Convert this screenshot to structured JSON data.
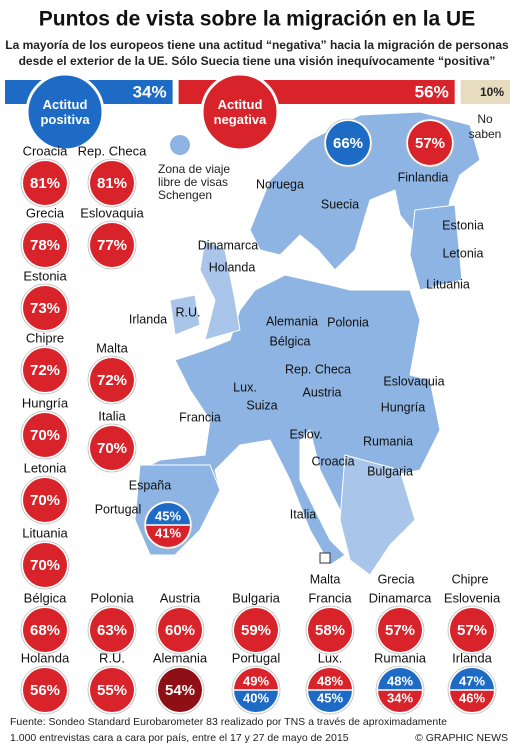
{
  "header": {
    "title": "Puntos de vista sobre la migración en la UE",
    "subtitle": [
      "La mayoría de los europeos tiene una actitud “negativa” hacia la migración de personas",
      "desde el exterior de la UE. Sólo Suecia tiene una visión inequívocamente “positiva”"
    ]
  },
  "summary": {
    "segments": [
      {
        "name": "Actitud positiva",
        "value": 34,
        "value_label": "34%",
        "color": "#1d6bc4"
      },
      {
        "name": "Actitud negativa",
        "value": 56,
        "value_label": "56%",
        "color": "#d8232a"
      },
      {
        "name": "No saben",
        "value": 10,
        "value_label": "10%",
        "color": "#e8dcc0"
      }
    ]
  },
  "palette": {
    "positive": "#1d6bc4",
    "negative": "#d8232a",
    "negative_dark": "#8e1014"
  },
  "schengen_legend": [
    "Zona de viaje",
    "libre de visas",
    "Schengen"
  ],
  "countries": [
    {
      "name": "Croacia",
      "values": [
        "81%"
      ],
      "tones": [
        "negative"
      ]
    },
    {
      "name": "Rep. Checa",
      "values": [
        "81%"
      ],
      "tones": [
        "negative"
      ]
    },
    {
      "name": "Grecia",
      "values": [
        "78%"
      ],
      "tones": [
        "negative"
      ]
    },
    {
      "name": "Eslovaquia",
      "values": [
        "77%"
      ],
      "tones": [
        "negative"
      ]
    },
    {
      "name": "Estonia",
      "values": [
        "73%"
      ],
      "tones": [
        "negative"
      ]
    },
    {
      "name": "Chipre",
      "values": [
        "72%"
      ],
      "tones": [
        "negative"
      ]
    },
    {
      "name": "Malta",
      "values": [
        "72%"
      ],
      "tones": [
        "negative"
      ]
    },
    {
      "name": "Hungría",
      "values": [
        "70%"
      ],
      "tones": [
        "negative"
      ]
    },
    {
      "name": "Italia",
      "values": [
        "70%"
      ],
      "tones": [
        "negative"
      ]
    },
    {
      "name": "Letonia",
      "values": [
        "70%"
      ],
      "tones": [
        "negative"
      ]
    },
    {
      "name": "Lituania",
      "values": [
        "70%"
      ],
      "tones": [
        "negative"
      ]
    },
    {
      "name": "Bélgica",
      "values": [
        "68%"
      ],
      "tones": [
        "negative"
      ]
    },
    {
      "name": "Polonia",
      "values": [
        "63%"
      ],
      "tones": [
        "negative"
      ]
    },
    {
      "name": "Austria",
      "values": [
        "60%"
      ],
      "tones": [
        "negative"
      ]
    },
    {
      "name": "Bulgaria",
      "values": [
        "59%"
      ],
      "tones": [
        "negative"
      ]
    },
    {
      "name": "Francia",
      "values": [
        "58%"
      ],
      "tones": [
        "negative"
      ]
    },
    {
      "name": "Dinamarca",
      "values": [
        "57%"
      ],
      "tones": [
        "negative"
      ]
    },
    {
      "name": "Eslovenia",
      "values": [
        "57%"
      ],
      "tones": [
        "negative"
      ]
    },
    {
      "name": "Holanda",
      "values": [
        "56%"
      ],
      "tones": [
        "negative"
      ]
    },
    {
      "name": "R.U.",
      "values": [
        "55%"
      ],
      "tones": [
        "negative"
      ]
    },
    {
      "name": "Alemania",
      "values": [
        "54%"
      ],
      "tones": [
        "negative_dark"
      ]
    },
    {
      "name": "Portugal",
      "values": [
        "49%",
        "40%"
      ],
      "tones": [
        "negative",
        "positive"
      ]
    },
    {
      "name": "Lux.",
      "values": [
        "48%",
        "45%"
      ],
      "tones": [
        "negative",
        "positive"
      ]
    },
    {
      "name": "Rumania",
      "values": [
        "48%",
        "34%"
      ],
      "tones": [
        "positive",
        "negative"
      ]
    },
    {
      "name": "Irlanda",
      "values": [
        "47%",
        "46%"
      ],
      "tones": [
        "positive",
        "negative"
      ]
    }
  ],
  "map_circles": [
    {
      "values": [
        "66%"
      ],
      "tones": [
        "positive"
      ]
    },
    {
      "values": [
        "57%"
      ],
      "tones": [
        "negative"
      ]
    },
    {
      "values": [
        "45%",
        "41%"
      ],
      "tones": [
        "positive",
        "negative"
      ]
    }
  ],
  "map_labels": [
    "Noruega",
    "Suecia",
    "Finlandia",
    "Estonia",
    "Letonia",
    "Lituania",
    "Dinamarca",
    "Holanda",
    "Irlanda",
    "R.U.",
    "Alemania",
    "Polonia",
    "Bélgica",
    "Rep. Checa",
    "Eslovaquia",
    "Lux.",
    "Austria",
    "Hungría",
    "Francia",
    "Suiza",
    "Eslov.",
    "Rumania",
    "Croacia",
    "Bulgaria",
    "España",
    "Portugal",
    "Italia",
    "Malta",
    "Grecia",
    "Chipre"
  ],
  "footer": {
    "source": [
      "Fuente: Sondeo Standard Eurobarometer 83 realizado por TNS a través de aproximadamente",
      "1.000 entrevistas cara a cara  por país, entre el 17 y 27 de mayo de 2015"
    ],
    "credit": "© GRAPHIC NEWS"
  }
}
